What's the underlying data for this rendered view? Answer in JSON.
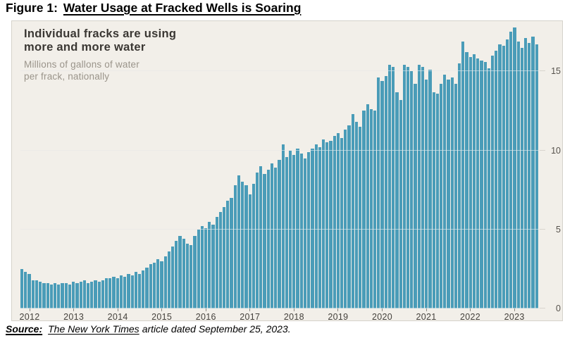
{
  "figure_title": {
    "prefix": "Figure 1:",
    "main": "Water Usage at Fracked Wells is Soaring"
  },
  "panel": {
    "title_line1": "Individual fracks are using",
    "title_line2": "more and more water",
    "subtitle_line1": "Millions of gallons of water",
    "subtitle_line2": "per frack, nationally"
  },
  "source": {
    "label": "Source:",
    "publication": "The New York Times",
    "suffix": "article dated September 25, 2023."
  },
  "colors": {
    "bar": "#4a9cb8",
    "panel_background": "#f2efe9",
    "grid_on_background": "#d9d5ce",
    "grid_on_bars": "rgba(255,255,255,0.5)",
    "tick": "#8d8984",
    "axis_label": "#45423d"
  },
  "chart_data": {
    "type": "bar",
    "title": "Individual fracks are using more and more water",
    "subtitle": "Millions of gallons of water per frack, nationally",
    "ylabel": "Millions of gallons of water per frack",
    "xlabel": "",
    "frequency": "monthly",
    "x_start": "2012-01",
    "x_end": "2023-09",
    "xtick_labels": [
      "2012",
      "2013",
      "2014",
      "2015",
      "2016",
      "2017",
      "2018",
      "2019",
      "2020",
      "2021",
      "2022",
      "2023"
    ],
    "ytick_values": [
      0,
      5,
      10,
      15
    ],
    "ylim": [
      0,
      18
    ],
    "grid": "horizontal",
    "legend": "none",
    "values": [
      2.5,
      2.3,
      2.2,
      1.8,
      1.8,
      1.7,
      1.6,
      1.6,
      1.5,
      1.6,
      1.5,
      1.6,
      1.6,
      1.5,
      1.7,
      1.6,
      1.7,
      1.8,
      1.6,
      1.7,
      1.8,
      1.7,
      1.8,
      1.9,
      1.9,
      2.0,
      1.9,
      2.1,
      2.0,
      2.2,
      2.1,
      2.3,
      2.2,
      2.4,
      2.6,
      2.8,
      2.9,
      3.1,
      3.0,
      3.3,
      3.6,
      3.9,
      4.3,
      4.6,
      4.4,
      4.1,
      4.0,
      4.6,
      5.0,
      5.2,
      5.1,
      5.5,
      5.3,
      5.8,
      6.1,
      6.4,
      6.8,
      7.0,
      7.8,
      8.4,
      8.0,
      7.8,
      7.2,
      7.9,
      8.6,
      9.0,
      8.5,
      8.8,
      9.2,
      8.9,
      9.4,
      10.4,
      9.6,
      10.0,
      9.7,
      10.1,
      9.8,
      9.5,
      9.9,
      10.1,
      10.4,
      10.2,
      10.7,
      10.5,
      10.6,
      10.9,
      11.1,
      10.8,
      11.3,
      11.6,
      12.3,
      11.8,
      11.5,
      12.5,
      12.9,
      12.6,
      12.5,
      14.6,
      14.4,
      14.7,
      15.4,
      15.3,
      13.7,
      13.2,
      15.4,
      15.3,
      15.0,
      14.2,
      15.4,
      15.3,
      14.5,
      15.1,
      13.7,
      13.6,
      14.2,
      14.8,
      14.5,
      14.6,
      14.2,
      15.5,
      16.9,
      16.2,
      15.9,
      16.1,
      15.8,
      15.7,
      15.6,
      15.2,
      16.0,
      16.3,
      16.7,
      16.6,
      17.0,
      17.5,
      17.8,
      16.9,
      16.5,
      17.1,
      16.8,
      17.2,
      16.7
    ]
  }
}
